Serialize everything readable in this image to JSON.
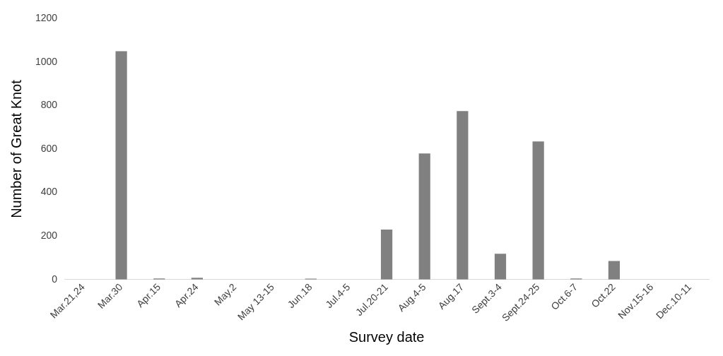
{
  "chart_data": {
    "type": "bar",
    "xlabel": "Survey date",
    "ylabel": "Number of Great Knot",
    "categories": [
      "Mar.21,24",
      "Mar.30",
      "Apr.15",
      "Apr.24",
      "May.2",
      "May 13-15",
      "Jun.18",
      "Jul.4-5",
      "Jul.20-21",
      "Aug.4-5",
      "Aug.17",
      "Sept.3-4",
      "Sept.24-25",
      "Oct.6-7",
      "Oct.22",
      "Nov.15-16",
      "Dec.10-11"
    ],
    "values": [
      0,
      1050,
      5,
      8,
      0,
      0,
      4,
      0,
      230,
      580,
      775,
      118,
      635,
      5,
      85,
      0,
      0
    ],
    "color": "#808080",
    "ylim": [
      0,
      1200
    ],
    "yticks": [
      0,
      200,
      400,
      600,
      800,
      1000,
      1200
    ],
    "grid": false,
    "legend": false
  }
}
